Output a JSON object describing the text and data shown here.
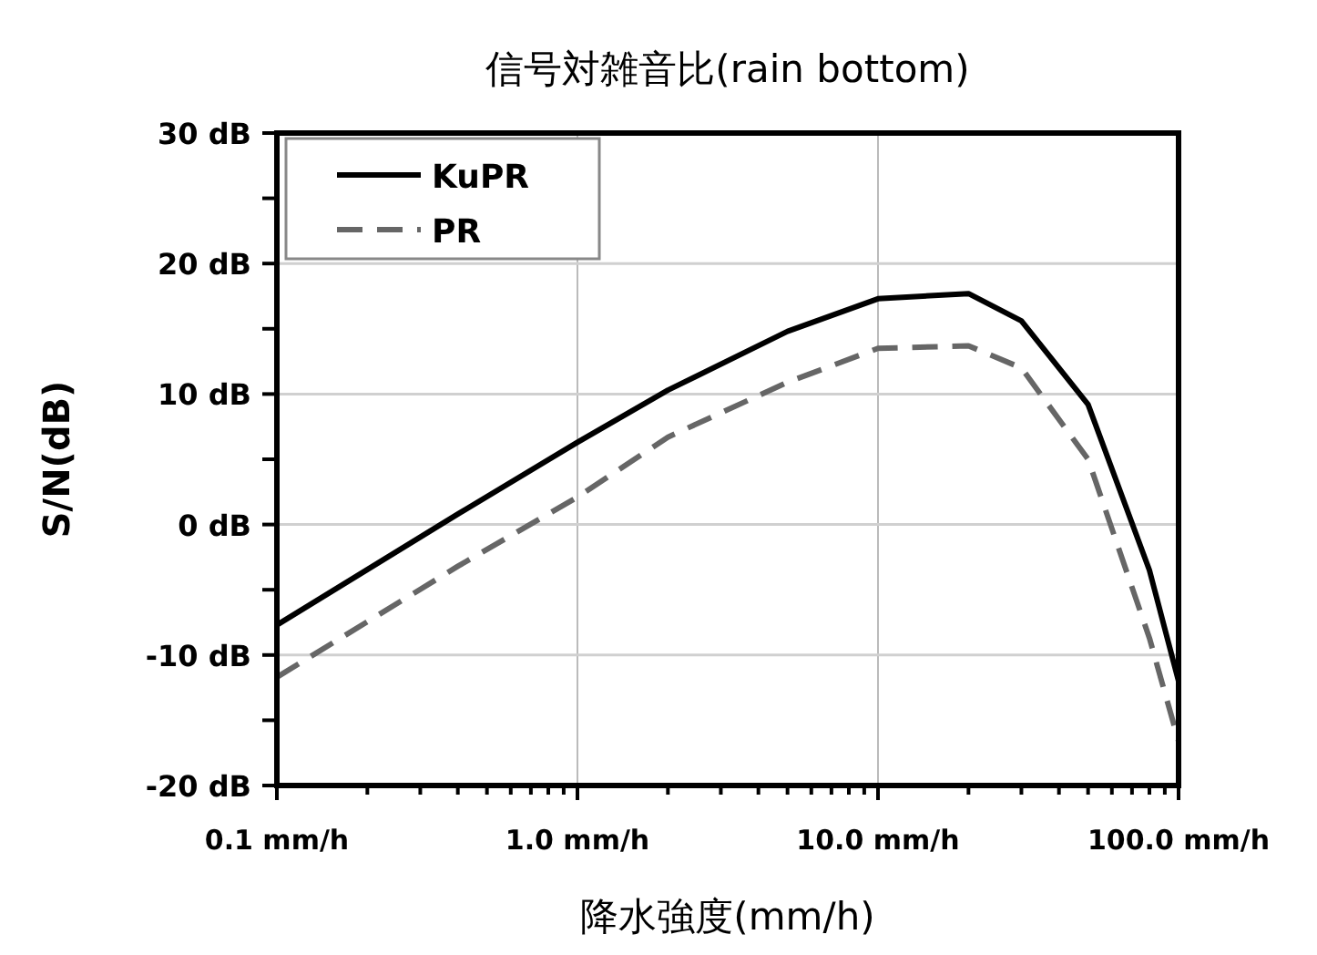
{
  "chart_data": {
    "type": "line",
    "title": "信号対雑音比(rain bottom)",
    "xlabel": "降水強度(mm/h)",
    "ylabel": "S/N(dB)",
    "log": "x",
    "grid": true,
    "legend": "top left",
    "xlim": [
      0.1,
      100
    ],
    "ylim": [
      -20,
      30
    ],
    "xticks": [
      {
        "value": 0.1,
        "label": "0.1 mm/h"
      },
      {
        "value": 1,
        "label": "1.0 mm/h"
      },
      {
        "value": 10,
        "label": "10.0 mm/h"
      },
      {
        "value": 100,
        "label": "100.0 mm/h"
      }
    ],
    "yticks": [
      {
        "value": -20,
        "label": "-20 dB"
      },
      {
        "value": -15,
        "label": null
      },
      {
        "value": -10,
        "label": "-10 dB"
      },
      {
        "value": -5,
        "label": null
      },
      {
        "value": 0,
        "label": "0 dB"
      },
      {
        "value": 5,
        "label": null
      },
      {
        "value": 10,
        "label": "10 dB"
      },
      {
        "value": 15,
        "label": null
      },
      {
        "value": 20,
        "label": "20 dB"
      },
      {
        "value": 25,
        "label": null
      },
      {
        "value": 30,
        "label": "30 dB"
      }
    ],
    "x": [
      0.1,
      0.4,
      1,
      2,
      5,
      10,
      20,
      30,
      50,
      80,
      100
    ],
    "series": [
      {
        "name": "KuPR",
        "color": "#000000",
        "line_style": "solid",
        "values": [
          -7.7,
          0.8,
          6.3,
          10.3,
          14.8,
          17.3,
          17.7,
          15.6,
          9.2,
          -3.5,
          -12
        ]
      },
      {
        "name": "PR",
        "color": "#666666",
        "line_style": "dashed",
        "values": [
          -11.7,
          -3.2,
          2.1,
          6.7,
          10.9,
          13.5,
          13.7,
          12.0,
          5.0,
          -8.7,
          -16.6
        ]
      }
    ]
  }
}
